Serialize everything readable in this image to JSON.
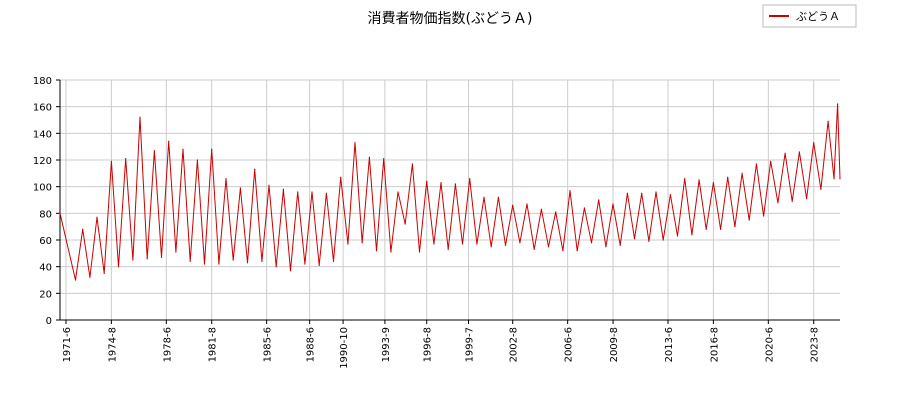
{
  "chart_data": {
    "type": "line",
    "title": "消費者物価指数(ぶどうＡ)",
    "xlabel": "",
    "ylabel": "",
    "ylim": [
      0,
      180
    ],
    "y_ticks": [
      0,
      20,
      40,
      60,
      80,
      100,
      120,
      140,
      160,
      180
    ],
    "x_tick_labels": [
      "1971-6",
      "1974-8",
      "1978-6",
      "1981-8",
      "1985-6",
      "1988-6",
      "1990-10",
      "1993-9",
      "1996-8",
      "1999-7",
      "2002-8",
      "2006-6",
      "2009-8",
      "2013-6",
      "2016-8",
      "2020-6",
      "2023-8"
    ],
    "x_start": "1971-1",
    "x_end": "2025-6",
    "grid": true,
    "legend_position": "top-right",
    "series": [
      {
        "name": "ぶどうＡ",
        "color": "#cc0000",
        "peaks": [
          [
            "1971-1",
            80
          ],
          [
            "1972-8",
            68
          ],
          [
            "1973-8",
            77
          ],
          [
            "1974-8",
            119
          ],
          [
            "1975-8",
            121
          ],
          [
            "1976-8",
            152
          ],
          [
            "1977-8",
            127
          ],
          [
            "1978-8",
            134
          ],
          [
            "1979-8",
            128
          ],
          [
            "1980-8",
            120
          ],
          [
            "1981-8",
            128
          ],
          [
            "1982-8",
            106
          ],
          [
            "1983-8",
            99
          ],
          [
            "1984-8",
            113
          ],
          [
            "1985-8",
            101
          ],
          [
            "1986-8",
            98
          ],
          [
            "1987-8",
            96
          ],
          [
            "1988-8",
            96
          ],
          [
            "1989-8",
            95
          ],
          [
            "1990-8",
            107
          ],
          [
            "1991-8",
            133
          ],
          [
            "1992-8",
            122
          ],
          [
            "1993-8",
            121
          ],
          [
            "1994-8",
            96
          ],
          [
            "1995-8",
            117
          ],
          [
            "1996-8",
            104
          ],
          [
            "1997-8",
            103
          ],
          [
            "1998-8",
            102
          ],
          [
            "1999-8",
            106
          ],
          [
            "2000-8",
            92
          ],
          [
            "2001-8",
            92
          ],
          [
            "2002-8",
            86
          ],
          [
            "2003-8",
            87
          ],
          [
            "2004-8",
            83
          ],
          [
            "2005-8",
            81
          ],
          [
            "2006-8",
            97
          ],
          [
            "2007-8",
            84
          ],
          [
            "2008-8",
            90
          ],
          [
            "2009-8",
            87
          ],
          [
            "2010-8",
            95
          ],
          [
            "2011-8",
            95
          ],
          [
            "2012-8",
            96
          ],
          [
            "2013-8",
            94
          ],
          [
            "2014-8",
            106
          ],
          [
            "2015-8",
            105
          ],
          [
            "2016-8",
            103
          ],
          [
            "2017-8",
            107
          ],
          [
            "2018-8",
            110
          ],
          [
            "2019-8",
            117
          ],
          [
            "2020-8",
            119
          ],
          [
            "2021-8",
            125
          ],
          [
            "2022-8",
            126
          ],
          [
            "2023-8",
            133
          ],
          [
            "2024-8",
            149
          ],
          [
            "2025-4",
            162
          ]
        ],
        "troughs": [
          [
            "1972-2",
            30
          ],
          [
            "1973-2",
            32
          ],
          [
            "1974-2",
            35
          ],
          [
            "1975-2",
            40
          ],
          [
            "1976-2",
            45
          ],
          [
            "1977-2",
            46
          ],
          [
            "1978-2",
            47
          ],
          [
            "1979-2",
            51
          ],
          [
            "1980-2",
            44
          ],
          [
            "1981-2",
            42
          ],
          [
            "1982-2",
            42
          ],
          [
            "1983-2",
            45
          ],
          [
            "1984-2",
            43
          ],
          [
            "1985-2",
            44
          ],
          [
            "1986-2",
            40
          ],
          [
            "1987-2",
            37
          ],
          [
            "1988-2",
            42
          ],
          [
            "1989-2",
            41
          ],
          [
            "1990-2",
            44
          ],
          [
            "1991-2",
            57
          ],
          [
            "1992-2",
            58
          ],
          [
            "1993-2",
            52
          ],
          [
            "1994-2",
            51
          ],
          [
            "1995-2",
            72
          ],
          [
            "1996-2",
            51
          ],
          [
            "1997-2",
            57
          ],
          [
            "1998-2",
            53
          ],
          [
            "1999-2",
            57
          ],
          [
            "2000-2",
            57
          ],
          [
            "2001-2",
            55
          ],
          [
            "2002-2",
            56
          ],
          [
            "2003-2",
            58
          ],
          [
            "2004-2",
            53
          ],
          [
            "2005-2",
            55
          ],
          [
            "2006-2",
            52
          ],
          [
            "2007-2",
            52
          ],
          [
            "2008-2",
            58
          ],
          [
            "2009-2",
            55
          ],
          [
            "2010-2",
            56
          ],
          [
            "2011-2",
            61
          ],
          [
            "2012-2",
            59
          ],
          [
            "2013-2",
            60
          ],
          [
            "2014-2",
            63
          ],
          [
            "2015-2",
            64
          ],
          [
            "2016-2",
            68
          ],
          [
            "2017-2",
            68
          ],
          [
            "2018-2",
            70
          ],
          [
            "2019-2",
            75
          ],
          [
            "2020-2",
            78
          ],
          [
            "2021-2",
            88
          ],
          [
            "2022-2",
            89
          ],
          [
            "2023-2",
            91
          ],
          [
            "2024-2",
            98
          ],
          [
            "2025-1",
            106
          ],
          [
            "2025-6",
            106
          ]
        ]
      }
    ]
  }
}
